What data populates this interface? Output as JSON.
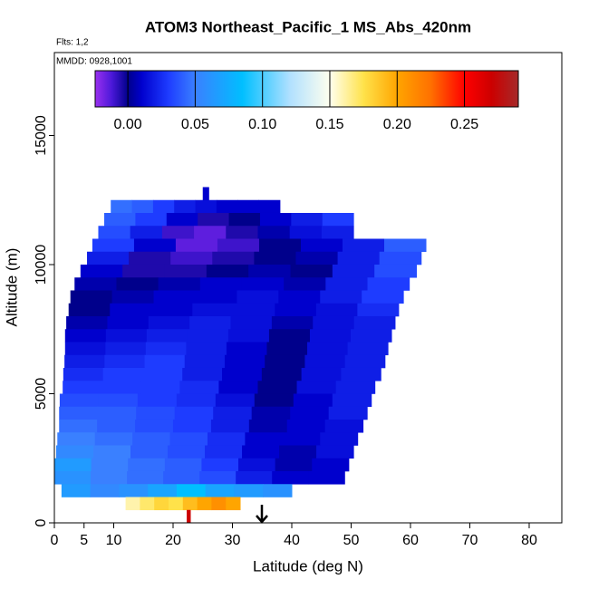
{
  "chart_data": {
    "type": "heatmap",
    "title": "ATOM3 Northeast_Pacific_1 MS_Abs_420nm",
    "annotations": [
      "Flts: 1,2",
      "MMDD: 0928,1001"
    ],
    "xlabel": "Latitude (deg N)",
    "ylabel": "Altitude (m)",
    "xlim": [
      0,
      85.5
    ],
    "ylim": [
      0,
      18210
    ],
    "xticks": [
      0,
      5,
      10,
      20,
      30,
      40,
      50,
      60,
      70,
      80
    ],
    "yticks": [
      0,
      5000,
      10000,
      15000
    ],
    "clim": [
      -0.0243,
      0.29
    ],
    "cticks": [
      {
        "value": 0,
        "label": "0.00"
      },
      0.05,
      {
        "value": 0.1,
        "label": "0.10"
      },
      0.15,
      {
        "value": 0.2,
        "label": "0.20"
      },
      0.25
    ],
    "colorscale": [
      {
        "value": -0.0243,
        "color": "#9a30f0"
      },
      {
        "value": -0.012,
        "color": "#4a18d8"
      },
      {
        "value": 0.0,
        "color": "#00008b"
      },
      {
        "value": 0.01,
        "color": "#0000cd"
      },
      {
        "value": 0.03,
        "color": "#1e3cff"
      },
      {
        "value": 0.05,
        "color": "#3a80ff"
      },
      {
        "value": 0.085,
        "color": "#00bfff"
      },
      {
        "value": 0.12,
        "color": "#b0e0ff"
      },
      {
        "value": 0.15,
        "color": "#ffffee"
      },
      {
        "value": 0.175,
        "color": "#ffe24a"
      },
      {
        "value": 0.2,
        "color": "#ffa500"
      },
      {
        "value": 0.225,
        "color": "#ff7000"
      },
      {
        "value": 0.25,
        "color": "#ff0000"
      },
      {
        "value": 0.27,
        "color": "#cc0000"
      },
      {
        "value": 0.29,
        "color": "#a52a2a"
      }
    ],
    "rows": [
      {
        "alt": [
          12500,
          13000
        ],
        "lat": [
          25,
          26
        ],
        "values": [
          0.01
        ]
      },
      {
        "alt": [
          12000,
          12500
        ],
        "lat": [
          9.5,
          38
        ],
        "values": [
          0.045,
          0.04,
          0.03,
          0.02,
          0.015,
          0.01,
          0.01,
          0.01
        ]
      },
      {
        "alt": [
          11500,
          12000
        ],
        "lat": [
          8.4,
          50.4
        ],
        "values": [
          0.04,
          0.03,
          0.01,
          -0.005,
          0.0,
          0.01,
          0.02,
          0.03
        ]
      },
      {
        "alt": [
          11000,
          11500
        ],
        "lat": [
          7.4,
          50.4
        ],
        "values": [
          0.035,
          0.02,
          -0.01,
          -0.015,
          -0.005,
          0.005,
          0.015,
          0.02
        ]
      },
      {
        "alt": [
          10500,
          11000
        ],
        "lat": [
          6.4,
          62.6
        ],
        "values": [
          0.03,
          0.01,
          -0.015,
          -0.01,
          0.0,
          0.01,
          0.02,
          0.04
        ]
      },
      {
        "alt": [
          10000,
          10500
        ],
        "lat": [
          5.5,
          61.8
        ],
        "values": [
          0.02,
          -0.005,
          -0.01,
          -0.005,
          0.0,
          0.005,
          0.02,
          0.035
        ]
      },
      {
        "alt": [
          9500,
          10000
        ],
        "lat": [
          4.4,
          61
        ],
        "values": [
          0.01,
          -0.005,
          -0.005,
          0.0,
          0.005,
          0.0,
          0.02,
          0.035
        ]
      },
      {
        "alt": [
          9000,
          9500
        ],
        "lat": [
          3.4,
          59.8
        ],
        "values": [
          0.005,
          0.0,
          0.005,
          0.01,
          0.01,
          0.005,
          0.02,
          0.03
        ]
      },
      {
        "alt": [
          8500,
          9000
        ],
        "lat": [
          2.7,
          58.8
        ],
        "values": [
          0.0,
          0.005,
          0.01,
          0.01,
          0.015,
          0.01,
          0.02,
          0.03
        ]
      },
      {
        "alt": [
          8000,
          8500
        ],
        "lat": [
          2.4,
          58
        ],
        "values": [
          0.0,
          0.01,
          0.01,
          0.015,
          0.015,
          0.01,
          0.015,
          0.025
        ]
      },
      {
        "alt": [
          7500,
          8000
        ],
        "lat": [
          2,
          57.4
        ],
        "values": [
          0.005,
          0.01,
          0.015,
          0.02,
          0.015,
          0.005,
          0.015,
          0.02
        ]
      },
      {
        "alt": [
          7000,
          7500
        ],
        "lat": [
          1.8,
          56.8
        ],
        "values": [
          0.01,
          0.015,
          0.02,
          0.02,
          0.015,
          0.0,
          0.015,
          0.02
        ]
      },
      {
        "alt": [
          6500,
          7000
        ],
        "lat": [
          1.8,
          56.2
        ],
        "values": [
          0.015,
          0.02,
          0.025,
          0.02,
          0.01,
          0.0,
          0.015,
          0.02
        ]
      },
      {
        "alt": [
          6000,
          6500
        ],
        "lat": [
          1.7,
          55.7
        ],
        "values": [
          0.02,
          0.025,
          0.03,
          0.02,
          0.01,
          0.0,
          0.015,
          0.02
        ]
      },
      {
        "alt": [
          5500,
          6000
        ],
        "lat": [
          1.5,
          55
        ],
        "values": [
          0.025,
          0.03,
          0.03,
          0.02,
          0.01,
          0.0,
          0.015,
          0.02
        ]
      },
      {
        "alt": [
          5000,
          5500
        ],
        "lat": [
          1.4,
          54
        ],
        "values": [
          0.03,
          0.03,
          0.03,
          0.025,
          0.01,
          0.0,
          0.015,
          0.02
        ]
      },
      {
        "alt": [
          4500,
          5000
        ],
        "lat": [
          0.9,
          53.4
        ],
        "values": [
          0.035,
          0.035,
          0.03,
          0.025,
          0.015,
          0.0,
          0.01,
          0.02
        ]
      },
      {
        "alt": [
          4000,
          4500
        ],
        "lat": [
          0.8,
          52.7
        ],
        "values": [
          0.04,
          0.04,
          0.035,
          0.03,
          0.02,
          0.005,
          0.01,
          0.02
        ]
      },
      {
        "alt": [
          3500,
          4000
        ],
        "lat": [
          0.8,
          52
        ],
        "values": [
          0.045,
          0.04,
          0.035,
          0.03,
          0.02,
          0.005,
          0.01,
          0.015
        ]
      },
      {
        "alt": [
          3000,
          3500
        ],
        "lat": [
          0.5,
          51.1
        ],
        "values": [
          0.05,
          0.045,
          0.04,
          0.035,
          0.025,
          0.01,
          0.01,
          0.015
        ]
      },
      {
        "alt": [
          2500,
          3000
        ],
        "lat": [
          0.3,
          50.4
        ],
        "values": [
          0.055,
          0.05,
          0.04,
          0.035,
          0.025,
          0.01,
          0.005,
          0.015
        ]
      },
      {
        "alt": [
          2000,
          2500
        ],
        "lat": [
          0,
          49.6
        ],
        "values": [
          0.065,
          0.05,
          0.045,
          0.04,
          0.03,
          0.015,
          0.005,
          0.01
        ]
      },
      {
        "alt": [
          1500,
          2000
        ],
        "lat": [
          0,
          48.9
        ],
        "values": [
          0.06,
          0.05,
          0.045,
          0.04,
          0.035,
          0.02,
          0.01,
          0.01
        ]
      },
      {
        "alt": [
          1000,
          1500
        ],
        "lat": [
          1.2,
          40
        ],
        "values": [
          0.065,
          0.055,
          0.06,
          0.07,
          0.085,
          0.07,
          0.065,
          0.06
        ]
      },
      {
        "alt": [
          500,
          1000
        ],
        "lat": [
          12,
          31.3
        ],
        "values": [
          0.16,
          0.17,
          0.18,
          0.175,
          0.19,
          0.2,
          0.21,
          0.2
        ]
      },
      {
        "alt": [
          0,
          500
        ],
        "lat": [
          22.3,
          22.9
        ],
        "values": [
          0.27
        ]
      }
    ]
  }
}
